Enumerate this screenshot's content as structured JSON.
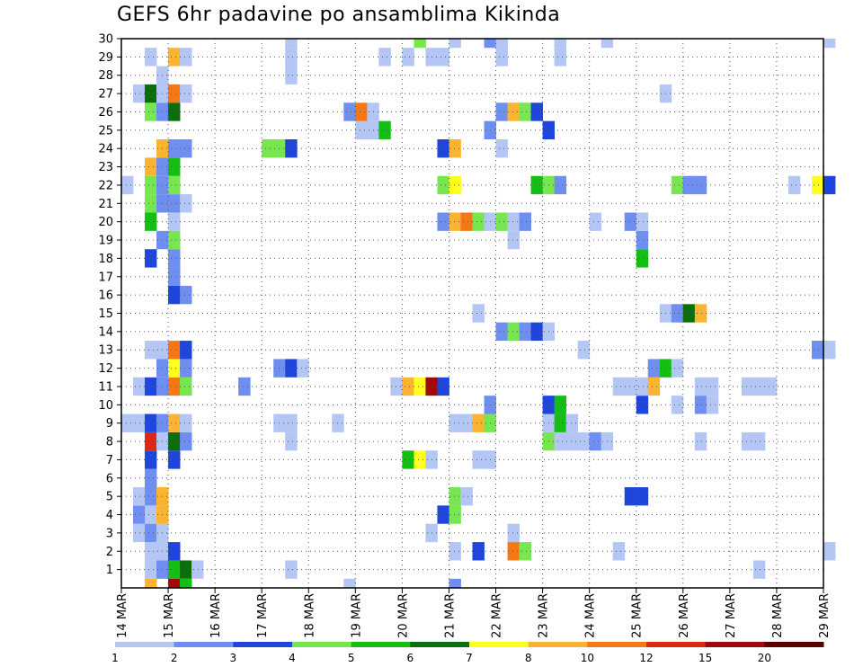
{
  "title": "GEFS 6hr padavine po ansamblima Kikinda",
  "chart_data": {
    "type": "heatmap",
    "title": "GEFS 6hr padavine po ansamblima Kikinda",
    "xlabel": "",
    "ylabel": "",
    "x_tick_labels": [
      "14 MAR",
      "15 MAR",
      "16 MAR",
      "17 MAR",
      "18 MAR",
      "19 MAR",
      "20 MAR",
      "21 MAR",
      "22 MAR",
      "23 MAR",
      "24 MAR",
      "25 MAR",
      "26 MAR",
      "27 MAR",
      "28 MAR",
      "29 MAR"
    ],
    "y_tick_labels": [
      "1",
      "2",
      "3",
      "4",
      "5",
      "6",
      "7",
      "8",
      "9",
      "10",
      "11",
      "12",
      "13",
      "14",
      "15",
      "16",
      "17",
      "18",
      "19",
      "20",
      "21",
      "22",
      "23",
      "24",
      "25",
      "26",
      "27",
      "28",
      "29",
      "30"
    ],
    "steps_per_day": 4,
    "members": 30,
    "grid": true,
    "colorbar": {
      "labels": [
        "1",
        "2",
        "3",
        "4",
        "5",
        "6",
        "7",
        "8",
        "10",
        "12",
        "15",
        "20"
      ],
      "colors": [
        "#b4c6f4",
        "#6e8ef0",
        "#1e46dc",
        "#78e650",
        "#14be14",
        "#0a6e0a",
        "#ffff1e",
        "#fab432",
        "#f57814",
        "#dc2814",
        "#a00a0a",
        "#5a0000"
      ]
    },
    "cells": [
      [
        1,
        2,
        1
      ],
      [
        1,
        3,
        2
      ],
      [
        1,
        4,
        5
      ],
      [
        1,
        5,
        6
      ],
      [
        1,
        6,
        1
      ],
      [
        1,
        14,
        1
      ],
      [
        1,
        54,
        1
      ],
      [
        2,
        2,
        1
      ],
      [
        2,
        3,
        1
      ],
      [
        2,
        4,
        3
      ],
      [
        2,
        28,
        1
      ],
      [
        2,
        30,
        3
      ],
      [
        2,
        33,
        9
      ],
      [
        2,
        34,
        4
      ],
      [
        2,
        42,
        1
      ],
      [
        2,
        60,
        1
      ],
      [
        3,
        1,
        1
      ],
      [
        3,
        2,
        2
      ],
      [
        3,
        3,
        1
      ],
      [
        3,
        26,
        1
      ],
      [
        3,
        33,
        1
      ],
      [
        4,
        1,
        2
      ],
      [
        4,
        2,
        1
      ],
      [
        4,
        3,
        8
      ],
      [
        4,
        27,
        3
      ],
      [
        4,
        28,
        4
      ],
      [
        5,
        1,
        1
      ],
      [
        5,
        2,
        2
      ],
      [
        5,
        3,
        8
      ],
      [
        5,
        28,
        4
      ],
      [
        5,
        29,
        1
      ],
      [
        5,
        43,
        3
      ],
      [
        5,
        44,
        3
      ],
      [
        6,
        2,
        2
      ],
      [
        7,
        2,
        3
      ],
      [
        7,
        4,
        3
      ],
      [
        7,
        24,
        5
      ],
      [
        7,
        25,
        7
      ],
      [
        7,
        26,
        1
      ],
      [
        7,
        30,
        1
      ],
      [
        7,
        31,
        1
      ],
      [
        8,
        2,
        10
      ],
      [
        8,
        3,
        1
      ],
      [
        8,
        4,
        6
      ],
      [
        8,
        5,
        2
      ],
      [
        8,
        14,
        1
      ],
      [
        8,
        36,
        4
      ],
      [
        8,
        37,
        1
      ],
      [
        8,
        38,
        1
      ],
      [
        8,
        39,
        1
      ],
      [
        8,
        40,
        2
      ],
      [
        8,
        41,
        1
      ],
      [
        8,
        49,
        1
      ],
      [
        8,
        53,
        1
      ],
      [
        8,
        54,
        1
      ],
      [
        9,
        0,
        1
      ],
      [
        9,
        1,
        1
      ],
      [
        9,
        2,
        3
      ],
      [
        9,
        3,
        2
      ],
      [
        9,
        4,
        8
      ],
      [
        9,
        5,
        1
      ],
      [
        9,
        13,
        1
      ],
      [
        9,
        14,
        1
      ],
      [
        9,
        18,
        1
      ],
      [
        9,
        28,
        1
      ],
      [
        9,
        29,
        1
      ],
      [
        9,
        30,
        8
      ],
      [
        9,
        31,
        4
      ],
      [
        9,
        36,
        1
      ],
      [
        9,
        37,
        5
      ],
      [
        9,
        38,
        1
      ],
      [
        10,
        31,
        2
      ],
      [
        10,
        36,
        3
      ],
      [
        10,
        37,
        5
      ],
      [
        10,
        44,
        3
      ],
      [
        10,
        47,
        1
      ],
      [
        10,
        49,
        2
      ],
      [
        10,
        50,
        1
      ],
      [
        11,
        1,
        1
      ],
      [
        11,
        2,
        3
      ],
      [
        11,
        3,
        2
      ],
      [
        11,
        4,
        9
      ],
      [
        11,
        5,
        4
      ],
      [
        11,
        10,
        2
      ],
      [
        11,
        23,
        1
      ],
      [
        11,
        24,
        8
      ],
      [
        11,
        25,
        7
      ],
      [
        11,
        26,
        11
      ],
      [
        11,
        27,
        3
      ],
      [
        11,
        42,
        1
      ],
      [
        11,
        43,
        1
      ],
      [
        11,
        44,
        1
      ],
      [
        11,
        45,
        8
      ],
      [
        11,
        49,
        1
      ],
      [
        11,
        50,
        1
      ],
      [
        11,
        53,
        1
      ],
      [
        11,
        54,
        1
      ],
      [
        11,
        55,
        1
      ],
      [
        12,
        3,
        2
      ],
      [
        12,
        4,
        7
      ],
      [
        12,
        5,
        2
      ],
      [
        12,
        13,
        2
      ],
      [
        12,
        14,
        3
      ],
      [
        12,
        15,
        1
      ],
      [
        12,
        45,
        2
      ],
      [
        12,
        46,
        5
      ],
      [
        12,
        47,
        1
      ],
      [
        13,
        2,
        1
      ],
      [
        13,
        3,
        1
      ],
      [
        13,
        4,
        9
      ],
      [
        13,
        5,
        3
      ],
      [
        13,
        39,
        1
      ],
      [
        13,
        59,
        2
      ],
      [
        13,
        60,
        1
      ],
      [
        14,
        32,
        2
      ],
      [
        14,
        33,
        4
      ],
      [
        14,
        34,
        2
      ],
      [
        14,
        35,
        3
      ],
      [
        14,
        36,
        1
      ],
      [
        15,
        30,
        1
      ],
      [
        15,
        46,
        1
      ],
      [
        15,
        47,
        2
      ],
      [
        15,
        48,
        6
      ],
      [
        15,
        49,
        8
      ],
      [
        16,
        4,
        3
      ],
      [
        16,
        5,
        2
      ],
      [
        17,
        4,
        2
      ],
      [
        18,
        2,
        3
      ],
      [
        18,
        4,
        2
      ],
      [
        18,
        44,
        5
      ],
      [
        19,
        3,
        2
      ],
      [
        19,
        4,
        4
      ],
      [
        19,
        33,
        1
      ],
      [
        19,
        44,
        2
      ],
      [
        20,
        2,
        5
      ],
      [
        20,
        4,
        1
      ],
      [
        20,
        27,
        2
      ],
      [
        20,
        28,
        8
      ],
      [
        20,
        29,
        9
      ],
      [
        20,
        30,
        4
      ],
      [
        20,
        31,
        1
      ],
      [
        20,
        32,
        4
      ],
      [
        20,
        33,
        1
      ],
      [
        20,
        34,
        2
      ],
      [
        20,
        40,
        1
      ],
      [
        20,
        43,
        2
      ],
      [
        20,
        44,
        1
      ],
      [
        21,
        2,
        4
      ],
      [
        21,
        3,
        2
      ],
      [
        21,
        4,
        2
      ],
      [
        21,
        5,
        1
      ],
      [
        22,
        0,
        1
      ],
      [
        22,
        2,
        4
      ],
      [
        22,
        3,
        2
      ],
      [
        22,
        4,
        4
      ],
      [
        22,
        27,
        4
      ],
      [
        22,
        28,
        7
      ],
      [
        22,
        35,
        5
      ],
      [
        22,
        36,
        4
      ],
      [
        22,
        37,
        2
      ],
      [
        22,
        47,
        4
      ],
      [
        22,
        48,
        2
      ],
      [
        22,
        49,
        2
      ],
      [
        22,
        57,
        1
      ],
      [
        22,
        59,
        7
      ],
      [
        22,
        60,
        3
      ],
      [
        23,
        2,
        8
      ],
      [
        23,
        3,
        2
      ],
      [
        23,
        4,
        5
      ],
      [
        24,
        3,
        8
      ],
      [
        24,
        4,
        2
      ],
      [
        24,
        5,
        2
      ],
      [
        24,
        12,
        4
      ],
      [
        24,
        13,
        4
      ],
      [
        24,
        14,
        3
      ],
      [
        24,
        27,
        3
      ],
      [
        24,
        28,
        8
      ],
      [
        24,
        32,
        1
      ],
      [
        25,
        20,
        1
      ],
      [
        25,
        21,
        1
      ],
      [
        25,
        22,
        5
      ],
      [
        25,
        31,
        2
      ],
      [
        25,
        36,
        3
      ],
      [
        26,
        2,
        4
      ],
      [
        26,
        3,
        2
      ],
      [
        26,
        4,
        6
      ],
      [
        26,
        19,
        2
      ],
      [
        26,
        20,
        9
      ],
      [
        26,
        21,
        1
      ],
      [
        26,
        32,
        2
      ],
      [
        26,
        33,
        8
      ],
      [
        26,
        34,
        4
      ],
      [
        26,
        35,
        3
      ],
      [
        27,
        1,
        1
      ],
      [
        27,
        2,
        6
      ],
      [
        27,
        3,
        1
      ],
      [
        27,
        4,
        9
      ],
      [
        27,
        5,
        1
      ],
      [
        27,
        46,
        1
      ],
      [
        28,
        3,
        1
      ],
      [
        28,
        14,
        1
      ],
      [
        29,
        2,
        1
      ],
      [
        29,
        4,
        8
      ],
      [
        29,
        5,
        1
      ],
      [
        29,
        14,
        1
      ],
      [
        29,
        22,
        1
      ],
      [
        29,
        24,
        1
      ],
      [
        29,
        26,
        1
      ],
      [
        29,
        27,
        1
      ],
      [
        29,
        32,
        1
      ],
      [
        29,
        37,
        1
      ],
      [
        30,
        14,
        1
      ],
      [
        30,
        25,
        4
      ],
      [
        30,
        28,
        1
      ],
      [
        30,
        31,
        2
      ],
      [
        30,
        32,
        1
      ],
      [
        30,
        37,
        1
      ],
      [
        30,
        41,
        1
      ],
      [
        30,
        60,
        1
      ],
      [
        0,
        2,
        8
      ],
      [
        0,
        4,
        11
      ],
      [
        0,
        5,
        5
      ],
      [
        0,
        19,
        1
      ],
      [
        0,
        28,
        2
      ]
    ]
  }
}
